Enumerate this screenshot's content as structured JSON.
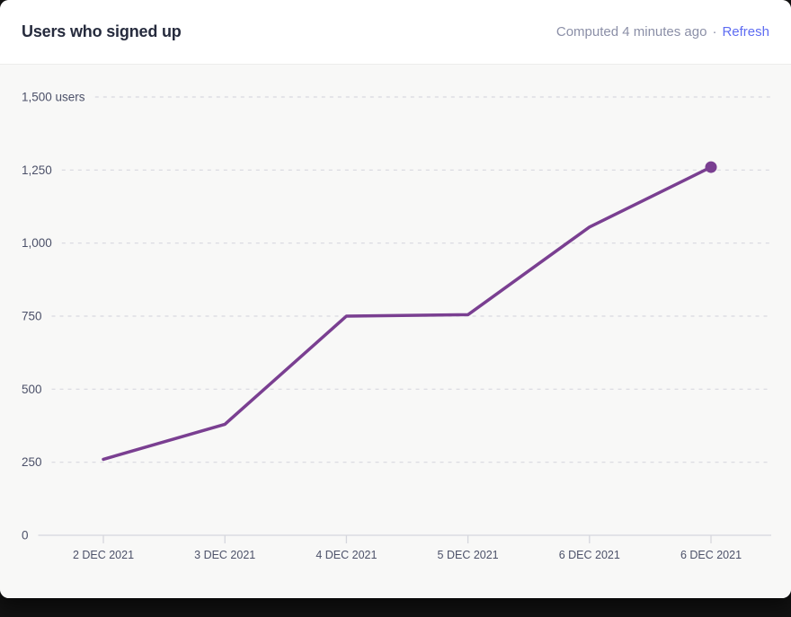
{
  "header": {
    "title": "Users who signed up",
    "computed_text": "Computed 4 minutes ago",
    "separator": "·",
    "refresh_label": "Refresh"
  },
  "colors": {
    "page_bg": "#121212",
    "card_bg": "#ffffff",
    "chart_bg": "#f8f8f7",
    "divider": "#ececeb",
    "title_text": "#262b3d",
    "muted_text": "#8b8fa7",
    "link": "#5e6cf2",
    "axis_label": "#4c5169",
    "gridline": "#d8d8e0",
    "axis_line": "#d5d6dd",
    "line": "#7a3f91"
  },
  "chart_data": {
    "type": "line",
    "title": "Users who signed up",
    "categories": [
      "2 DEC 2021",
      "3 DEC 2021",
      "4 DEC 2021",
      "5 DEC 2021",
      "6 DEC 2021",
      "6 DEC 2021"
    ],
    "values": [
      260,
      380,
      750,
      755,
      1055,
      1260
    ],
    "y_ticks": [
      1500,
      1250,
      1000,
      750,
      500,
      250,
      0
    ],
    "y_tick_labels": [
      "1,500 users",
      "1,250",
      "1,000",
      "750",
      "500",
      "250",
      "0"
    ],
    "ylim": [
      0,
      1500
    ],
    "xlabel": "",
    "ylabel": "users",
    "grid": "horizontal-dashed",
    "legend": "none",
    "last_point_marker": true
  }
}
